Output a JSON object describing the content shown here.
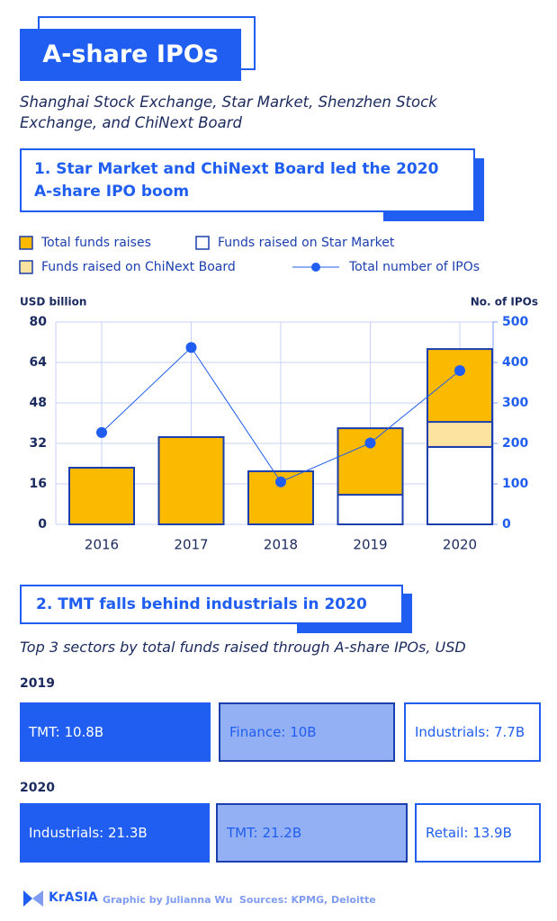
{
  "header": {
    "title": "A-share IPOs",
    "subtitle": "Shanghai Stock Exchange, Star Market, Shenzhen Stock Exchange, and ChiNext Board"
  },
  "section1": {
    "title": "1. Star Market and ChiNext Board led the 2020 A-share IPO boom"
  },
  "chart_data": {
    "type": "bar",
    "ylabel": "USD billion",
    "y2label": "No. of IPOs",
    "categories": [
      "2016",
      "2017",
      "2018",
      "2019",
      "2020"
    ],
    "series": [
      {
        "name": "Total funds raises",
        "color": "#fbb900",
        "values": [
          22.4,
          34.5,
          21,
          38,
          69.3
        ]
      },
      {
        "name": "Funds raised on Star Market",
        "color": "#ffffff",
        "values": [
          null,
          null,
          null,
          11.7,
          30.6
        ]
      },
      {
        "name": "Funds raised on ChiNext Board",
        "color": "#fde3a0",
        "values": [
          null,
          null,
          null,
          null,
          9.9
        ]
      },
      {
        "name": "Total number of IPOs",
        "type": "line",
        "axis": "y2",
        "color": "#1f5ef0",
        "values": [
          227,
          437,
          105,
          201,
          380
        ]
      }
    ],
    "ylim": [
      0,
      80
    ],
    "yticks": [
      0,
      16,
      32,
      48,
      64,
      80
    ],
    "y2lim": [
      0,
      500
    ],
    "y2ticks": [
      0,
      100,
      200,
      300,
      400,
      500
    ],
    "grid": true
  },
  "section2": {
    "title": "2. TMT falls behind industrials in 2020",
    "subtitle": "Top 3 sectors by total funds raised through A-share IPOs, USD",
    "years": [
      {
        "year": "2019",
        "items": [
          "TMT: 10.8B",
          "Finance: 10B",
          "Industrials: 7.7B"
        ]
      },
      {
        "year": "2020",
        "items": [
          "Industrials: 21.3B",
          "TMT: 21.2B",
          "Retail: 13.9B"
        ]
      }
    ]
  },
  "footer": {
    "brand": "KrASIA",
    "credit": "Graphic by Julianna Wu",
    "sources": "Sources: KPMG, Deloitte"
  }
}
